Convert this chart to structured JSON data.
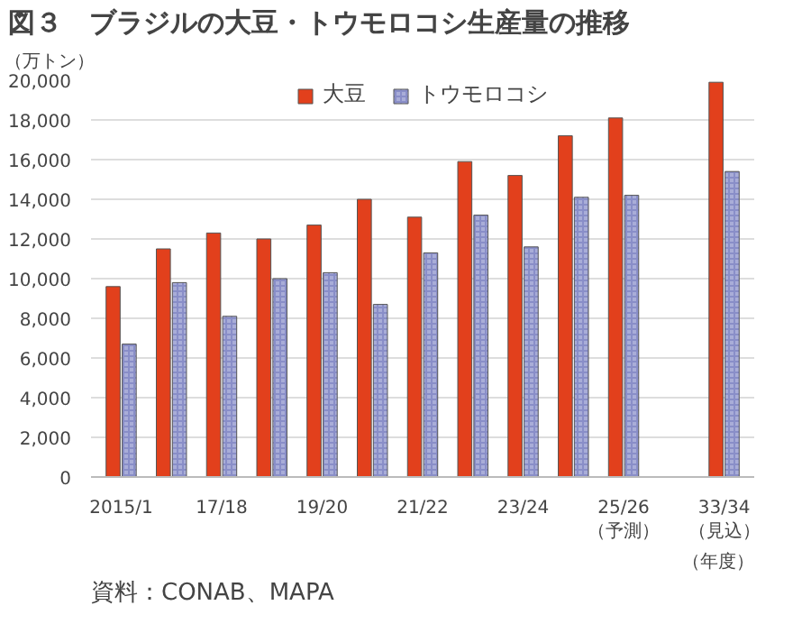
{
  "chart_data": {
    "type": "bar",
    "title": "図３　ブラジルの大豆・トウモロコシ生産量の推移",
    "ylabel": "（万トン）",
    "xlabel": "（年度）",
    "categories": [
      "2015/1",
      null,
      "17/18",
      null,
      "19/20",
      null,
      "21/22",
      null,
      "23/24",
      null,
      "25/26\n（予測）",
      null,
      "33/34\n（見込）"
    ],
    "series": [
      {
        "name": "大豆",
        "color": "#e2401c",
        "values": [
          9600,
          11500,
          12300,
          12000,
          12700,
          14000,
          13100,
          15900,
          15200,
          17200,
          18100,
          null,
          19900
        ]
      },
      {
        "name": "トウモロコシ",
        "color": "#a9add8",
        "values": [
          6700,
          9800,
          8100,
          10000,
          10300,
          8700,
          11300,
          13200,
          11600,
          14100,
          14200,
          null,
          15400
        ]
      }
    ],
    "ylim": [
      0,
      20000
    ],
    "yticks": [
      {
        "value": 0,
        "label": "0"
      },
      {
        "value": 2000,
        "label": "2,000"
      },
      {
        "value": 4000,
        "label": "4,000"
      },
      {
        "value": 6000,
        "label": "6,000"
      },
      {
        "value": 8000,
        "label": "8,000"
      },
      {
        "value": 10000,
        "label": "10,000"
      },
      {
        "value": 12000,
        "label": "12,000"
      },
      {
        "value": 14000,
        "label": "14,000"
      },
      {
        "value": 16000,
        "label": "16,000"
      },
      {
        "value": 18000,
        "label": "18,000"
      },
      {
        "value": 20000,
        "label": "20,000"
      }
    ],
    "grid": "y",
    "legend": "top",
    "annotations": [
      "資料：CONAB、MAPA"
    ]
  }
}
